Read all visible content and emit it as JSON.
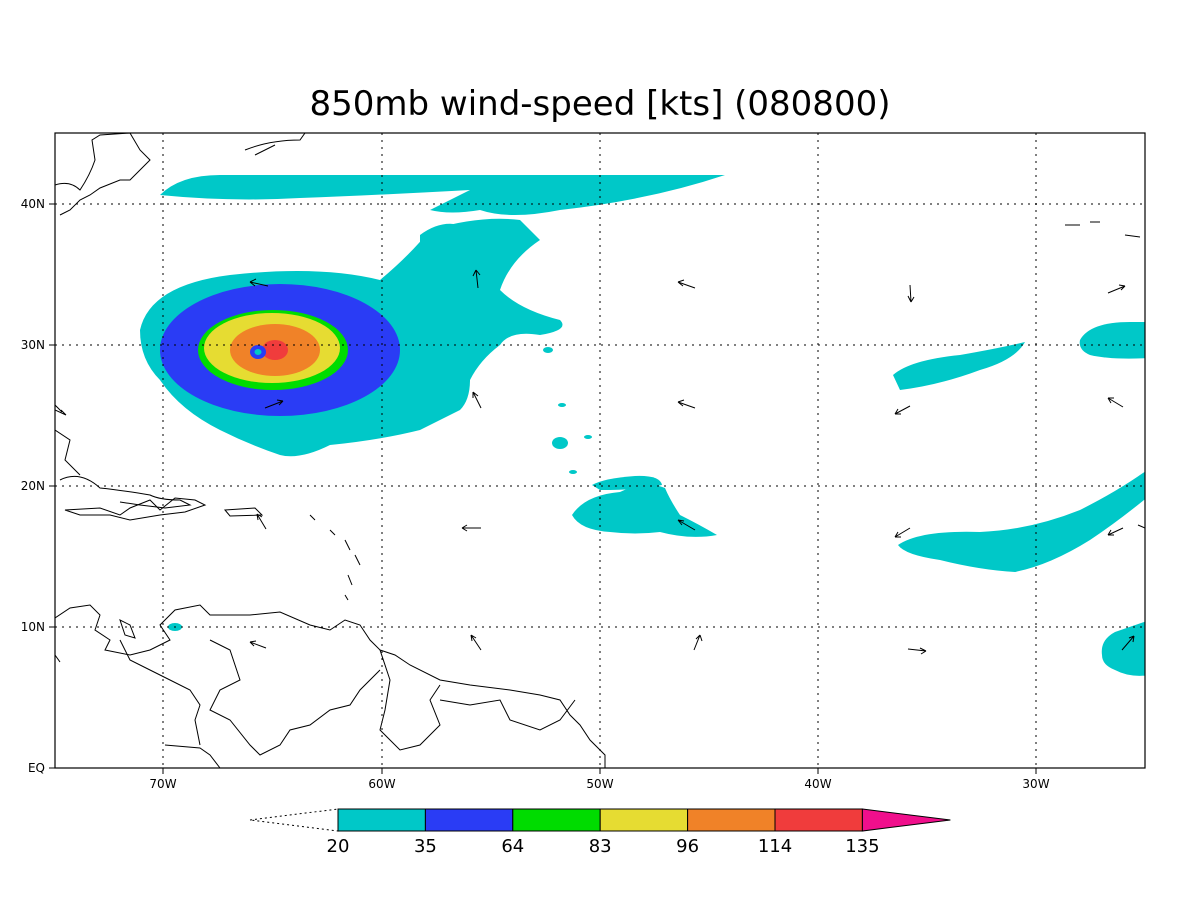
{
  "title": "850mb wind-speed [kts] (080800)",
  "x_ticks": [
    "70W",
    "60W",
    "50W",
    "40W",
    "30W"
  ],
  "y_ticks": [
    "40N",
    "30N",
    "20N",
    "10N",
    "EQ"
  ],
  "legend": {
    "labels": [
      "20",
      "35",
      "64",
      "83",
      "96",
      "114",
      "135"
    ],
    "colors": [
      "#00c8c8",
      "#2a3cf5",
      "#00dc00",
      "#e6dc32",
      "#f08228",
      "#f03c3c",
      "#f00f8c"
    ]
  },
  "chart_data": {
    "type": "heatmap",
    "title": "850mb wind-speed [kts] (080800)",
    "xlabel": "",
    "ylabel": "",
    "x_range": [
      "75W",
      "25W"
    ],
    "y_range": [
      "EQ",
      "45N"
    ],
    "grid": true,
    "contour_levels_kts": [
      20,
      35,
      64,
      83,
      96,
      114,
      135
    ],
    "storm_center": {
      "lon": "65W",
      "lat": "30N"
    }
  }
}
